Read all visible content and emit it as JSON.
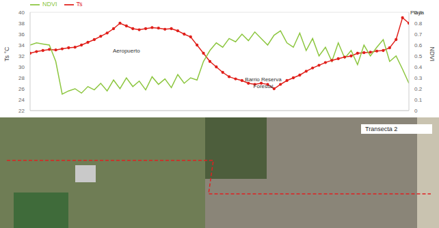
{
  "chart_data": {
    "type": "line",
    "x_label": null,
    "y_label": "Ts °C",
    "y2_label": "NDVI",
    "x": [
      1,
      2,
      3,
      4,
      5,
      6,
      7,
      8,
      9,
      10,
      11,
      12,
      13,
      14,
      15,
      16,
      17,
      18,
      19,
      20,
      21,
      22,
      23,
      24,
      25,
      26,
      27,
      28,
      29,
      30,
      31,
      32,
      33,
      34,
      35,
      36,
      37,
      38,
      39,
      40,
      41,
      42,
      43,
      44,
      45,
      46,
      47,
      48,
      49,
      50,
      51,
      52,
      53,
      54,
      55,
      56,
      57,
      58,
      59,
      60
    ],
    "xlim": [
      1,
      60
    ],
    "ylim": [
      22,
      40
    ],
    "yticks": [
      22,
      24,
      26,
      28,
      30,
      32,
      34,
      36,
      38,
      40
    ],
    "y2lim": [
      0,
      0.9
    ],
    "y2ticks": [
      0,
      0.1,
      0.2,
      0.3,
      0.4,
      0.5,
      0.6,
      0.7,
      0.8,
      0.9
    ],
    "grid": true,
    "legend": "top-left",
    "tick_labels": "y",
    "series": [
      {
        "name": "Ts",
        "color": "#e0201b",
        "marker": "square",
        "values": [
          32.5,
          32.8,
          33.0,
          33.2,
          33.1,
          33.3,
          33.5,
          33.6,
          34.0,
          34.5,
          35.0,
          35.6,
          36.2,
          37.0,
          38.0,
          37.5,
          37.0,
          36.8,
          37.0,
          37.2,
          37.1,
          36.9,
          37.0,
          36.6,
          36.0,
          35.5,
          34.0,
          32.5,
          31.0,
          30.0,
          29.0,
          28.2,
          27.8,
          27.5,
          27.0,
          26.8,
          27.0,
          26.8,
          26.0,
          26.8,
          27.5,
          28.0,
          28.5,
          29.2,
          29.8,
          30.3,
          30.8,
          31.2,
          31.5,
          31.8,
          32.0,
          32.5,
          32.6,
          32.7,
          32.9,
          33.0,
          33.5,
          35.0,
          39.0,
          38.0
        ]
      },
      {
        "name": "NDVI",
        "color": "#8cc63f",
        "axis": "y2",
        "values": [
          0.6,
          0.62,
          0.61,
          0.6,
          0.45,
          0.15,
          0.18,
          0.2,
          0.16,
          0.22,
          0.19,
          0.25,
          0.18,
          0.28,
          0.2,
          0.3,
          0.22,
          0.27,
          0.19,
          0.31,
          0.24,
          0.29,
          0.21,
          0.33,
          0.25,
          0.3,
          0.28,
          0.45,
          0.55,
          0.62,
          0.58,
          0.66,
          0.63,
          0.7,
          0.64,
          0.72,
          0.66,
          0.6,
          0.69,
          0.73,
          0.62,
          0.58,
          0.71,
          0.55,
          0.66,
          0.5,
          0.58,
          0.45,
          0.62,
          0.48,
          0.55,
          0.42,
          0.6,
          0.5,
          0.58,
          0.65,
          0.45,
          0.5,
          0.38,
          0.25
        ]
      }
    ],
    "annotations": [
      "Aeropuerto",
      "Barrio Reserva Forestal",
      "Playa"
    ]
  },
  "photo": {
    "label": "Transecta 2"
  }
}
